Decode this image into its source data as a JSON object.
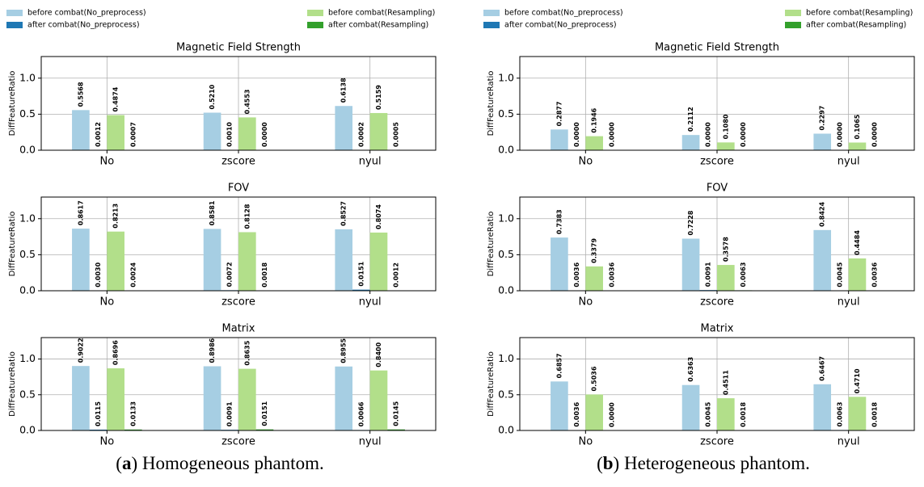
{
  "chart_data": [
    {
      "type": "bar",
      "title": "Magnetic Field Strength",
      "ylabel": "DiffFeatureRatio",
      "categories": [
        "No",
        "zscore",
        "nyul"
      ],
      "ylim": [
        0,
        1.3
      ],
      "yticks": [
        {
          "value": 0,
          "label": "0.0"
        },
        {
          "value": 0.5,
          "label": "0.5"
        },
        {
          "value": 1,
          "label": "1.0"
        }
      ],
      "grid": true,
      "series": [
        {
          "name": "before combat(No_preprocess)",
          "color": "#a6cee3",
          "values": [
            0.5568,
            0.521,
            0.6138
          ],
          "value_labels": [
            "0.5568",
            "0.5210",
            "0.6138"
          ]
        },
        {
          "name": "after combat(No_preprocess)",
          "color": "#1f78b4",
          "values": [
            0.0012,
            0.001,
            0.0002
          ],
          "value_labels": [
            "0.0012",
            "0.0010",
            "0.0002"
          ]
        },
        {
          "name": "before combat(Resampling)",
          "color": "#b2df8a",
          "values": [
            0.4874,
            0.4553,
            0.5159
          ],
          "value_labels": [
            "0.4874",
            "0.4553",
            "0.5159"
          ]
        },
        {
          "name": "after combat(Resampling)",
          "color": "#33a02c",
          "values": [
            0.0007,
            0,
            0.0005
          ],
          "value_labels": [
            "0.0007",
            "0.0000",
            "0.0005"
          ]
        }
      ]
    },
    {
      "type": "bar",
      "title": "FOV",
      "ylabel": "DiffFeatureRatio",
      "categories": [
        "No",
        "zscore",
        "nyul"
      ],
      "ylim": [
        0,
        1.3
      ],
      "yticks": [
        {
          "value": 0,
          "label": "0.0"
        },
        {
          "value": 0.5,
          "label": "0.5"
        },
        {
          "value": 1,
          "label": "1.0"
        }
      ],
      "grid": true,
      "series": [
        {
          "name": "before combat(No_preprocess)",
          "color": "#a6cee3",
          "values": [
            0.8617,
            0.8581,
            0.8527
          ],
          "value_labels": [
            "0.8617",
            "0.8581",
            "0.8527"
          ]
        },
        {
          "name": "after combat(No_preprocess)",
          "color": "#1f78b4",
          "values": [
            0.003,
            0.0072,
            0.0151
          ],
          "value_labels": [
            "0.0030",
            "0.0072",
            "0.0151"
          ]
        },
        {
          "name": "before combat(Resampling)",
          "color": "#b2df8a",
          "values": [
            0.8213,
            0.8128,
            0.8074
          ],
          "value_labels": [
            "0.8213",
            "0.8128",
            "0.8074"
          ]
        },
        {
          "name": "after combat(Resampling)",
          "color": "#33a02c",
          "values": [
            0.0024,
            0.0018,
            0.0012
          ],
          "value_labels": [
            "0.0024",
            "0.0018",
            "0.0012"
          ]
        }
      ]
    },
    {
      "type": "bar",
      "title": "Matrix",
      "ylabel": "DiffFeatureRatio",
      "categories": [
        "No",
        "zscore",
        "nyul"
      ],
      "ylim": [
        0,
        1.3
      ],
      "yticks": [
        {
          "value": 0,
          "label": "0.0"
        },
        {
          "value": 0.5,
          "label": "0.5"
        },
        {
          "value": 1,
          "label": "1.0"
        }
      ],
      "grid": true,
      "series": [
        {
          "name": "before combat(No_preprocess)",
          "color": "#a6cee3",
          "values": [
            0.9022,
            0.8986,
            0.8955
          ],
          "value_labels": [
            "0.9022",
            "0.8986",
            "0.8955"
          ]
        },
        {
          "name": "after combat(No_preprocess)",
          "color": "#1f78b4",
          "values": [
            0.0115,
            0.0091,
            0.0066
          ],
          "value_labels": [
            "0.0115",
            "0.0091",
            "0.0066"
          ]
        },
        {
          "name": "before combat(Resampling)",
          "color": "#b2df8a",
          "values": [
            0.8696,
            0.8635,
            0.84
          ],
          "value_labels": [
            "0.8696",
            "0.8635",
            "0.8400"
          ]
        },
        {
          "name": "after combat(Resampling)",
          "color": "#33a02c",
          "values": [
            0.0133,
            0.0151,
            0.0145
          ],
          "value_labels": [
            "0.0133",
            "0.0151",
            "0.0145"
          ]
        }
      ]
    },
    {
      "type": "bar",
      "title": "Magnetic Field Strength",
      "ylabel": "DiffFeatureRatio",
      "categories": [
        "No",
        "zscore",
        "nyul"
      ],
      "ylim": [
        0,
        1.3
      ],
      "yticks": [
        {
          "value": 0,
          "label": "0.0"
        },
        {
          "value": 0.5,
          "label": "0.5"
        },
        {
          "value": 1,
          "label": "1.0"
        }
      ],
      "grid": true,
      "series": [
        {
          "name": "before combat(No_preprocess)",
          "color": "#a6cee3",
          "values": [
            0.2877,
            0.2112,
            0.2297
          ],
          "value_labels": [
            "0.2877",
            "0.2112",
            "0.2297"
          ]
        },
        {
          "name": "after combat(No_preprocess)",
          "color": "#1f78b4",
          "values": [
            0,
            0,
            0
          ],
          "value_labels": [
            "0.0000",
            "0.0000",
            "0.0000"
          ]
        },
        {
          "name": "before combat(Resampling)",
          "color": "#b2df8a",
          "values": [
            0.1946,
            0.108,
            0.1065
          ],
          "value_labels": [
            "0.1946",
            "0.1080",
            "0.1065"
          ]
        },
        {
          "name": "after combat(Resampling)",
          "color": "#33a02c",
          "values": [
            0,
            0,
            0
          ],
          "value_labels": [
            "0.0000",
            "0.0000",
            "0.0000"
          ]
        }
      ]
    },
    {
      "type": "bar",
      "title": "FOV",
      "ylabel": "DiffFeatureRatio",
      "categories": [
        "No",
        "zscore",
        "nyul"
      ],
      "ylim": [
        0,
        1.3
      ],
      "yticks": [
        {
          "value": 0,
          "label": "0.0"
        },
        {
          "value": 0.5,
          "label": "0.5"
        },
        {
          "value": 1,
          "label": "1.0"
        }
      ],
      "grid": true,
      "series": [
        {
          "name": "before combat(No_preprocess)",
          "color": "#a6cee3",
          "values": [
            0.7383,
            0.7228,
            0.8424
          ],
          "value_labels": [
            "0.7383",
            "0.7228",
            "0.8424"
          ]
        },
        {
          "name": "after combat(No_preprocess)",
          "color": "#1f78b4",
          "values": [
            0.0036,
            0.0091,
            0.0045
          ],
          "value_labels": [
            "0.0036",
            "0.0091",
            "0.0045"
          ]
        },
        {
          "name": "before combat(Resampling)",
          "color": "#b2df8a",
          "values": [
            0.3379,
            0.3578,
            0.4484
          ],
          "value_labels": [
            "0.3379",
            "0.3578",
            "0.4484"
          ]
        },
        {
          "name": "after combat(Resampling)",
          "color": "#33a02c",
          "values": [
            0.0036,
            0.0063,
            0.0036
          ],
          "value_labels": [
            "0.0036",
            "0.0063",
            "0.0036"
          ]
        }
      ]
    },
    {
      "type": "bar",
      "title": "Matrix",
      "ylabel": "DiffFeatureRatio",
      "categories": [
        "No",
        "zscore",
        "nyul"
      ],
      "ylim": [
        0,
        1.3
      ],
      "yticks": [
        {
          "value": 0,
          "label": "0.0"
        },
        {
          "value": 0.5,
          "label": "0.5"
        },
        {
          "value": 1,
          "label": "1.0"
        }
      ],
      "grid": true,
      "series": [
        {
          "name": "before combat(No_preprocess)",
          "color": "#a6cee3",
          "values": [
            0.6857,
            0.6363,
            0.6467
          ],
          "value_labels": [
            "0.6857",
            "0.6363",
            "0.6467"
          ]
        },
        {
          "name": "after combat(No_preprocess)",
          "color": "#1f78b4",
          "values": [
            0.0036,
            0.0045,
            0.0063
          ],
          "value_labels": [
            "0.0036",
            "0.0045",
            "0.0063"
          ]
        },
        {
          "name": "before combat(Resampling)",
          "color": "#b2df8a",
          "values": [
            0.5036,
            0.4511,
            0.471
          ],
          "value_labels": [
            "0.5036",
            "0.4511",
            "0.4710"
          ]
        },
        {
          "name": "after combat(Resampling)",
          "color": "#33a02c",
          "values": [
            0,
            0.0018,
            0.0018
          ],
          "value_labels": [
            "0.0000",
            "0.0018",
            "0.0018"
          ]
        }
      ]
    }
  ],
  "captions": [
    {
      "label": "a",
      "text": "Homogeneous phantom."
    },
    {
      "label": "b",
      "text": "Heterogeneous phantom."
    }
  ]
}
